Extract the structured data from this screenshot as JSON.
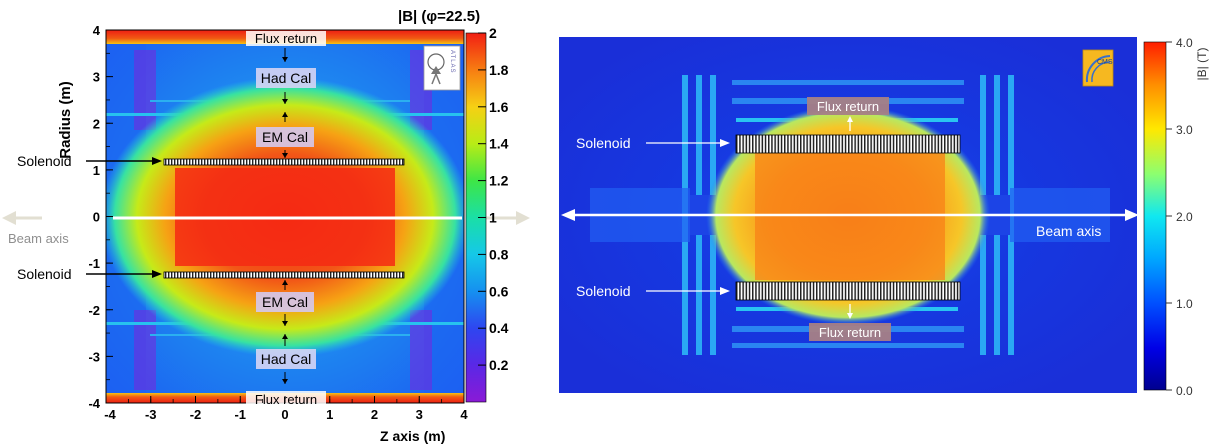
{
  "chart_data": [
    {
      "type": "heatmap",
      "title": "|B| (φ=22.5)",
      "xlabel": "Z axis (m)",
      "ylabel": "Radius (m)",
      "xlim": [
        -4,
        4
      ],
      "ylim": [
        -4,
        4
      ],
      "x_ticks": [
        "-4",
        "-3",
        "-2",
        "-1",
        "0",
        "1",
        "2",
        "3",
        "4"
      ],
      "y_ticks": [
        "-4",
        "-3",
        "-2",
        "-1",
        "0",
        "1",
        "2",
        "3",
        "4"
      ],
      "colorbar": {
        "range": [
          0,
          2
        ],
        "ticks": [
          "0.2",
          "0.4",
          "0.6",
          "0.8",
          "1",
          "1.2",
          "1.4",
          "1.6",
          "1.8",
          "2"
        ]
      },
      "logo": "ATLAS",
      "annotations": {
        "flux_top": "Flux return",
        "had_top": "Had Cal",
        "em_top": "EM Cal",
        "solenoid_top": "Solenoid",
        "beam_axis": "Beam axis",
        "solenoid_bottom": "Solenoid",
        "em_bottom": "EM Cal",
        "had_bottom": "Had Cal",
        "flux_bottom": "Flux return"
      },
      "solenoid": {
        "z_min": -2.7,
        "z_max": 2.7,
        "radius": 1.2
      },
      "core_field": 1.8
    },
    {
      "type": "heatmap",
      "colorbar": {
        "label": "|B| (T)",
        "range": [
          0,
          4
        ],
        "ticks": [
          "0.0",
          "1.0",
          "2.0",
          "3.0",
          "4.0"
        ]
      },
      "logo": "CMS",
      "annotations": {
        "solenoid_top": "Solenoid",
        "flux_top": "Flux return",
        "beam_axis": "Beam axis",
        "solenoid_bottom": "Solenoid",
        "flux_bottom": "Flux return"
      },
      "core_field": 3.8
    }
  ]
}
